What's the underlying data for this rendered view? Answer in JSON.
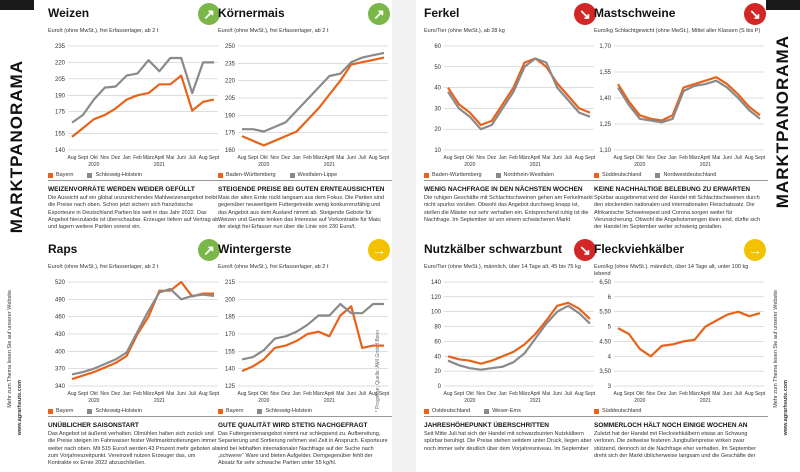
{
  "sidebar": {
    "left_title": "MARKTPANORAMA",
    "left_small": "Mehr zum Thema lesen Sie auf unserer Website",
    "left_url": "www.agrarheute.com",
    "right_title": "MARKTPANORAMA",
    "right_small": "Mehr zum Thema lesen Sie auf unserer Website",
    "right_url": "www.agrarheute.com"
  },
  "credit": "* Prognose; Quelle: AMI GmbH Bonn",
  "colors": {
    "orange": "#e8631a",
    "gray": "#8a8a8a",
    "up": "#7ab648",
    "down": "#d32626",
    "flat": "#f2c200"
  },
  "panels": [
    {
      "title": "Weizen",
      "trend": "up",
      "trend_icon": "arrow-up-right-icon",
      "trend_glyph": "↗",
      "subtitle": "Euro/t (ohne MwSt.), frei Erfasserlager, ab 2 t",
      "headline": "WEIZENVORRÄTE WERDEN WEIDER GEFÜLLT",
      "body": "Die Aussicht auf ein global unzureichendes Mahlweizenangebot treibt die Preise nach oben. Schon jetzt sichern sich französische Exporteure in Deutschland Partien bis weit in das Jahr 2022. Das Angebot hierzulande ist überschaubar. Erzeuger liefern auf Vertrag ab und lagern weitere Partien vorerst ein.",
      "legend": [
        {
          "name": "Bayern",
          "color": "#e8631a"
        },
        {
          "name": "Schleswig-Holstein",
          "color": "#8a8a8a"
        }
      ]
    },
    {
      "title": "Körnermais",
      "trend": "up",
      "trend_icon": "arrow-up-right-icon",
      "trend_glyph": "↗",
      "subtitle": "Euro/t (ohne MwSt.), frei Erfasserlager, ab 2 t",
      "headline": "STEIGENDE PREISE BEI GUTEN ERNTEAUSSICHTEN",
      "body": "Mais der alten Ernte rückt langsam aus dem Fokus. Die Partien sind gegenüber neuwertigem Futtergetreide wenig konkurrenzfähig und das Angebot aus dem Ausland nimmt ab. Steigende Gebote für Weizen und Gerste lenken das Interesse auf Vorkontrakte für Mais; der steigt frei Erfasser nun über die Linie von 230 Euro/t.",
      "legend": [
        {
          "name": "Baden-Württemberg",
          "color": "#e8631a"
        },
        {
          "name": "Westfalen-Lippe",
          "color": "#8a8a8a"
        }
      ]
    },
    {
      "title": "Ferkel",
      "trend": "down",
      "trend_icon": "arrow-down-right-icon",
      "trend_glyph": "↘",
      "subtitle": "Euro/Tier (ohne MwSt.), ab 28 kg",
      "headline": "WENIG NACHFRAGE IN DEN NÄCHSTEN WOCHEN",
      "body": "Die ruhigen Geschäfte mit Schlachtschweinen gehen am Ferkelmarkt nicht spurlos vorüber. Obwohl das Angebot durchweg knapp ist, stellen die Mäster nur sehr verhalten ein. Entsprechend ruhig ist die Nachfrage. Im September ist von einem schwächeren Markt",
      "legend": [
        {
          "name": "Baden-Württemberg",
          "color": "#e8631a"
        },
        {
          "name": "Nordrhein-Westfalen",
          "color": "#8a8a8a"
        }
      ]
    },
    {
      "title": "Mastschweine",
      "trend": "down",
      "trend_icon": "arrow-down-right-icon",
      "trend_glyph": "↘",
      "subtitle": "Euro/kg Schlachtgewicht (ohne MwSt.), Mittel aller Klassen (S bis P)",
      "headline": "KEINE NACHHALTIGE BELEBUNG ZU ERWARTEN",
      "body": "Spürbar ausgebremst wird der Handel mit Schlachtschweinen durch den stockenden nationalen und internationalen Fleischabsatz. Die Afrikanische Schweinepest und Corona sorgen weiter für Verunsicherung. Obwohl die Angebotsmengen klein sind, dürfte sich der Handel im September weiter schwierig gestalten.",
      "legend": [
        {
          "name": "Süddeutschland",
          "color": "#e8631a"
        },
        {
          "name": "Nordwestdeutschland",
          "color": "#8a8a8a"
        }
      ]
    },
    {
      "title": "Raps",
      "trend": "up",
      "trend_icon": "arrow-up-right-icon",
      "trend_glyph": "↗",
      "subtitle": "Euro/t (ohne MwSt.), frei Erfasserlager, ab 2 t",
      "headline": "UNÜBLICHER SAISONSTART",
      "body": "Das Angebot ist äußerst verhalten. Ölmühlen halten sich zurück und die Preise steigen im Fahrwasser fester Weltmarktnotierungen immer weiter nach oben. Mit 515 Euro/t werden 43 Prozent mehr geboten als zum Vorjahreszeitpunkt. Vereinzelt nutzen Erzeuger das, um Kontrakte ex Ernte 2022 abzuschließen.",
      "legend": [
        {
          "name": "Bayern",
          "color": "#e8631a"
        },
        {
          "name": "Schleswig-Holstein",
          "color": "#8a8a8a"
        }
      ]
    },
    {
      "title": "Wintergerste",
      "trend": "flat",
      "trend_icon": "arrow-right-icon",
      "trend_glyph": "→",
      "subtitle": "Euro/t (ohne MwSt.), frei Erfasserlager, ab 2 t",
      "headline": "GUTE QUALITÄT WIRD STETIG NACHGEFRAGT",
      "body": "Das Futtergerstenangebot nimmt nur schleppend zu. Aufbereitung, Separierung und Sortierung nehmen viel Zeit in Anspruch. Exporteure sind bei lebhaften internationaler Nachfrage auf der Suche nach „schwerer“ Ware und bieten Aufgelder. Demgegenüber fehlt der Absatz für sehr schwache Partien unter 55 kg/hl.",
      "legend": [
        {
          "name": "Bayern",
          "color": "#e8631a"
        },
        {
          "name": "Schleswig-Holstein",
          "color": "#8a8a8a"
        }
      ]
    },
    {
      "title": "Nutzkälber schwarzbunt",
      "trend": "down",
      "trend_icon": "arrow-down-right-icon",
      "trend_glyph": "↘",
      "subtitle": "Euro/Tier (ohne MwSt.), männlich, über 14 Tage alt, 45 bis 75 kg",
      "headline": "JAHRESHÖHEPUNKT ÜBERSCHRITTEN",
      "body": "Seit Mitte Juli hat sich der Handel mit schwarzbunten Nutzkälbern spürbar beruhigt. Die Preise stehen seitdem unter Druck, liegen aber noch immer sehr deutlich über dem Vorjahresniveau. Im September",
      "legend": [
        {
          "name": "Ostdeutschland",
          "color": "#e8631a"
        },
        {
          "name": "Weser-Ems",
          "color": "#8a8a8a"
        }
      ]
    },
    {
      "title": "Fleckviehkälber",
      "trend": "flat",
      "trend_icon": "arrow-right-icon",
      "trend_glyph": "→",
      "subtitle": "Euro/kg (ohne MwSt.), männlich, über 14 Tage alt, unter 100 kg lebend",
      "headline": "SOMMERLOCH HÄLT NOCH EINIGE WOCHEN AN",
      "body": "Zuletzt hat der Handel mit Fleckviehkälbern etwas an Schwung verloren. Die zeitweise festeren Jungbullenpreise wirken zwar stützend, dennoch ist die Nachfrage eher verhalten. Im September dreht sich der Markt üblicherweise langsam und die Geschäfte der",
      "legend": [
        {
          "name": "Süddeutschland",
          "color": "#e8631a"
        }
      ]
    }
  ],
  "chart_data": [
    {
      "type": "line",
      "title": "Weizen",
      "x": [
        "Aug",
        "Sept",
        "Okt",
        "Nov",
        "Dez",
        "Jan",
        "Feb",
        "März",
        "April",
        "Mai",
        "Juni",
        "Juli",
        "Aug",
        "Sept"
      ],
      "year_labels": [
        "2020",
        "2021"
      ],
      "yticks": [
        140,
        155,
        175,
        190,
        205,
        220,
        235
      ],
      "ylim": [
        140,
        235
      ],
      "series": [
        {
          "name": "Bayern",
          "color": "#e8631a",
          "values": [
            152,
            160,
            168,
            172,
            178,
            186,
            190,
            192,
            200,
            200,
            208,
            176,
            184,
            186
          ]
        },
        {
          "name": "Schleswig-Holstein",
          "color": "#8a8a8a",
          "values": [
            165,
            172,
            186,
            197,
            198,
            208,
            210,
            222,
            212,
            224,
            224,
            192,
            220,
            220
          ]
        }
      ]
    },
    {
      "type": "line",
      "title": "Körnermais",
      "x": [
        "Aug",
        "Sept",
        "Okt",
        "Nov",
        "Dez",
        "Jan",
        "Feb",
        "März",
        "April",
        "Mai",
        "Juni",
        "Juli",
        "Aug",
        "Sept"
      ],
      "year_labels": [
        "2020",
        "2021"
      ],
      "yticks": [
        160,
        175,
        190,
        205,
        220,
        235,
        250
      ],
      "ylim": [
        160,
        250
      ],
      "series": [
        {
          "name": "Baden-Württemberg",
          "color": "#e8631a",
          "values": [
            172,
            168,
            164,
            168,
            172,
            176,
            186,
            196,
            208,
            220,
            234,
            236,
            238,
            240
          ]
        },
        {
          "name": "Westfalen-Lippe",
          "color": "#8a8a8a",
          "values": [
            178,
            178,
            176,
            180,
            184,
            194,
            204,
            214,
            224,
            226,
            236,
            240,
            242,
            244
          ]
        }
      ]
    },
    {
      "type": "line",
      "title": "Ferkel",
      "x": [
        "Aug",
        "Sept",
        "Okt",
        "Nov",
        "Dez",
        "Jan",
        "Feb",
        "März",
        "April",
        "Mai",
        "Juni",
        "Juli",
        "Aug",
        "Sept"
      ],
      "year_labels": [
        "2020",
        "2021"
      ],
      "yticks": [
        10,
        20,
        30,
        40,
        50,
        60
      ],
      "ylim": [
        10,
        60
      ],
      "series": [
        {
          "name": "Baden-Württemberg",
          "color": "#e8631a",
          "values": [
            40,
            32,
            28,
            22,
            24,
            32,
            40,
            52,
            54,
            50,
            42,
            36,
            30,
            28
          ]
        },
        {
          "name": "Nordrhein-Westfalen",
          "color": "#8a8a8a",
          "values": [
            38,
            30,
            26,
            20,
            22,
            30,
            38,
            50,
            54,
            52,
            40,
            34,
            28,
            26
          ]
        }
      ]
    },
    {
      "type": "line",
      "title": "Mastschweine",
      "x": [
        "Aug",
        "Sept",
        "Okt",
        "Nov",
        "Dez",
        "Jan",
        "Feb",
        "März",
        "April",
        "Mai",
        "Juni",
        "Juli",
        "Aug",
        "Sept"
      ],
      "year_labels": [
        "2020",
        "2021"
      ],
      "yticks": [
        1.1,
        1.25,
        1.4,
        1.55,
        1.7
      ],
      "ylim": [
        1.1,
        1.7
      ],
      "series": [
        {
          "name": "Süddeutschland",
          "color": "#e8631a",
          "values": [
            1.48,
            1.38,
            1.3,
            1.28,
            1.27,
            1.3,
            1.46,
            1.48,
            1.5,
            1.52,
            1.48,
            1.42,
            1.35,
            1.3
          ]
        },
        {
          "name": "Nordwestdeutschland",
          "color": "#8a8a8a",
          "values": [
            1.46,
            1.36,
            1.28,
            1.27,
            1.26,
            1.28,
            1.44,
            1.47,
            1.48,
            1.5,
            1.46,
            1.4,
            1.33,
            1.28
          ]
        }
      ]
    },
    {
      "type": "line",
      "title": "Raps",
      "x": [
        "Aug",
        "Sept",
        "Okt",
        "Nov",
        "Dez",
        "Jan",
        "Feb",
        "März",
        "April",
        "Mai",
        "Juni",
        "Juli",
        "Aug",
        "Sept"
      ],
      "year_labels": [
        "2020",
        "2021"
      ],
      "yticks": [
        340,
        370,
        400,
        430,
        460,
        490,
        520
      ],
      "ylim": [
        340,
        520
      ],
      "series": [
        {
          "name": "Bayern",
          "color": "#e8631a",
          "values": [
            352,
            358,
            364,
            372,
            380,
            392,
            430,
            460,
            505,
            505,
            520,
            495,
            500,
            500
          ]
        },
        {
          "name": "Schleswig-Holstein",
          "color": "#8a8a8a",
          "values": [
            360,
            364,
            370,
            378,
            386,
            398,
            434,
            470,
            502,
            508,
            490,
            496,
            498,
            496
          ]
        }
      ]
    },
    {
      "type": "line",
      "title": "Wintergerste",
      "x": [
        "Aug",
        "Sept",
        "Okt",
        "Nov",
        "Dez",
        "Jan",
        "Feb",
        "März",
        "April",
        "Mai",
        "Juni",
        "Juli",
        "Aug",
        "Sept"
      ],
      "year_labels": [
        "2020",
        "2021"
      ],
      "yticks": [
        125,
        140,
        155,
        170,
        185,
        200,
        215
      ],
      "ylim": [
        125,
        215
      ],
      "series": [
        {
          "name": "Bayern",
          "color": "#e8631a",
          "values": [
            138,
            142,
            148,
            158,
            160,
            164,
            170,
            172,
            168,
            186,
            194,
            158,
            160,
            160
          ]
        },
        {
          "name": "Schleswig-Holstein",
          "color": "#8a8a8a",
          "values": [
            148,
            150,
            156,
            166,
            168,
            172,
            178,
            186,
            186,
            196,
            188,
            188,
            196,
            196
          ]
        }
      ]
    },
    {
      "type": "line",
      "title": "Nutzkälber schwarzbunt",
      "x": [
        "Aug",
        "Sept",
        "Okt",
        "Nov",
        "Dez",
        "Jan",
        "Feb",
        "März",
        "April",
        "Mai",
        "Juni",
        "Juli",
        "Aug",
        "Sept"
      ],
      "year_labels": [
        "2020",
        "2021"
      ],
      "yticks": [
        0,
        20,
        40,
        60,
        80,
        100,
        120,
        140
      ],
      "ylim": [
        0,
        140
      ],
      "series": [
        {
          "name": "Ostdeutschland",
          "color": "#e8631a",
          "values": [
            40,
            36,
            34,
            30,
            34,
            40,
            46,
            56,
            70,
            88,
            108,
            112,
            104,
            90
          ]
        },
        {
          "name": "Weser-Ems",
          "color": "#8a8a8a",
          "values": [
            34,
            28,
            24,
            22,
            24,
            26,
            32,
            44,
            64,
            84,
            100,
            108,
            98,
            84
          ]
        }
      ]
    },
    {
      "type": "line",
      "title": "Fleckviehkälber",
      "x": [
        "Aug",
        "Sept",
        "Okt",
        "Nov",
        "Dez",
        "Jan",
        "Feb",
        "März",
        "April",
        "Mai",
        "Juni",
        "Juli",
        "Aug",
        "Sept"
      ],
      "year_labels": [
        "2020",
        "2021"
      ],
      "yticks": [
        3.0,
        3.5,
        4.0,
        4.5,
        5.0,
        5.5,
        6.0,
        6.5
      ],
      "ylim": [
        3.0,
        6.5
      ],
      "series": [
        {
          "name": "Süddeutschland",
          "color": "#e8631a",
          "values": [
            4.95,
            4.75,
            4.25,
            4.0,
            4.35,
            4.4,
            4.5,
            4.55,
            5.0,
            5.2,
            5.4,
            5.5,
            5.35,
            5.45
          ]
        }
      ]
    }
  ]
}
